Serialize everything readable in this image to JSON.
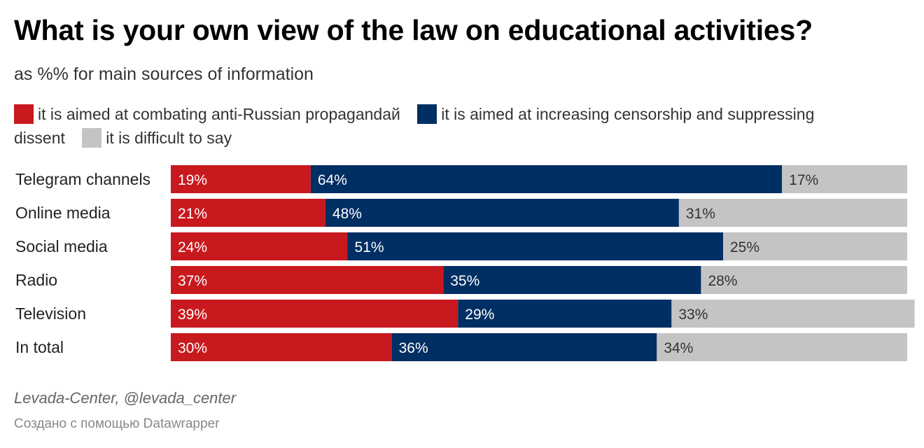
{
  "header": {
    "title": "What is your own view of the law on educational activities?",
    "subtitle": "as %% for main sources of information"
  },
  "colors": {
    "combating": "#c8191e",
    "censorship": "#002f63",
    "difficult": "#c4c4c4"
  },
  "chart_data": {
    "type": "bar",
    "orientation": "horizontal",
    "stacked": true,
    "title": "What is your own view of the law on educational activities?",
    "subtitle": "as %% for main sources of information",
    "unit": "%",
    "xlim": [
      0,
      100
    ],
    "legend_position": "top",
    "grid": false,
    "categories": [
      "Telegram channels",
      "Online media",
      "Social media",
      "Radio",
      "Television",
      "In total"
    ],
    "series": [
      {
        "name": "it is aimed at combating anti-Russian propagandaй",
        "color": "#c8191e",
        "values": [
          19,
          21,
          24,
          37,
          39,
          30
        ]
      },
      {
        "name": "it is aimed at increasing censorship and suppressing dissent",
        "color": "#002f63",
        "values": [
          64,
          48,
          51,
          35,
          29,
          36
        ]
      },
      {
        "name": "it is difficult to say",
        "color": "#c4c4c4",
        "values": [
          17,
          31,
          25,
          28,
          33,
          34
        ]
      }
    ]
  },
  "footer": {
    "source": "Levada-Center, @levada_center",
    "credit": "Создано с помощью Datawrapper"
  }
}
